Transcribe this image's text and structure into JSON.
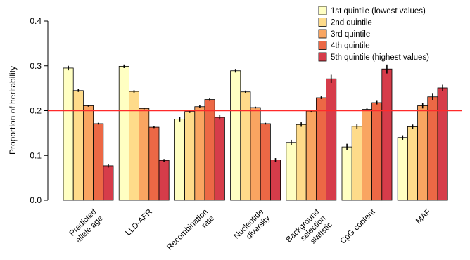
{
  "chart_data": {
    "type": "bar",
    "ylabel": "Proportion of heritability",
    "ylim": [
      0,
      0.4
    ],
    "yticks": [
      "0.0",
      "0.1",
      "0.2",
      "0.3",
      "0.4"
    ],
    "reference_line": {
      "value": 0.2,
      "color": "#ff2a2a"
    },
    "legend_position": "top-right",
    "categories": [
      [
        "Predicted",
        "allele age"
      ],
      [
        "LLD-AFR"
      ],
      [
        "Recombination",
        "rate"
      ],
      [
        "Nucleotide",
        "diversity"
      ],
      [
        "Background",
        "selection",
        "statistic"
      ],
      [
        "CpG content"
      ],
      [
        "MAF"
      ]
    ],
    "series": [
      {
        "name": "1st quintile (lowest values)",
        "color": "#ffffc2",
        "values": [
          0.295,
          0.299,
          0.181,
          0.289,
          0.129,
          0.119,
          0.14
        ],
        "errors": [
          0.005,
          0.004,
          0.005,
          0.004,
          0.006,
          0.007,
          0.005
        ]
      },
      {
        "name": "2nd quintile",
        "color": "#fedb8a",
        "values": [
          0.245,
          0.243,
          0.198,
          0.242,
          0.169,
          0.165,
          0.164
        ],
        "errors": [
          0.003,
          0.003,
          0.003,
          0.003,
          0.005,
          0.006,
          0.005
        ]
      },
      {
        "name": "3rd quintile",
        "color": "#f9a561",
        "values": [
          0.211,
          0.205,
          0.209,
          0.207,
          0.199,
          0.203,
          0.211
        ],
        "errors": [
          0.002,
          0.002,
          0.003,
          0.002,
          0.003,
          0.003,
          0.006
        ]
      },
      {
        "name": "4th quintile",
        "color": "#ec6845",
        "values": [
          0.171,
          0.163,
          0.225,
          0.171,
          0.229,
          0.218,
          0.231
        ],
        "errors": [
          0.002,
          0.002,
          0.003,
          0.002,
          0.003,
          0.004,
          0.007
        ]
      },
      {
        "name": "5th quintile (highest values)",
        "color": "#d63c4a",
        "values": [
          0.077,
          0.089,
          0.185,
          0.09,
          0.271,
          0.293,
          0.251
        ],
        "errors": [
          0.004,
          0.003,
          0.005,
          0.004,
          0.009,
          0.01,
          0.007
        ]
      }
    ]
  }
}
